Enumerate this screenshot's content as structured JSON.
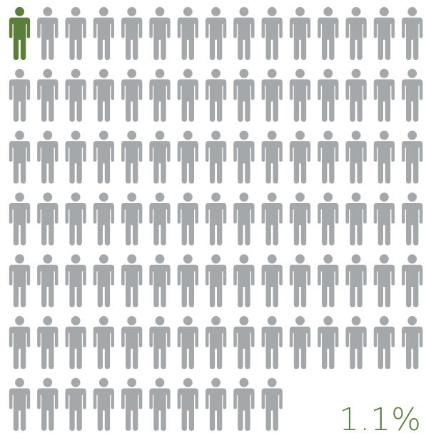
{
  "chart_data": {
    "type": "pictogram",
    "total_icons": 100,
    "columns": 15,
    "highlighted_icons": 1,
    "value_label": "1.1%",
    "icon": "person-icon",
    "colors": {
      "highlight": "#5b7f3a",
      "base": "#a5a8aa",
      "label": "#5b7f3a"
    }
  }
}
